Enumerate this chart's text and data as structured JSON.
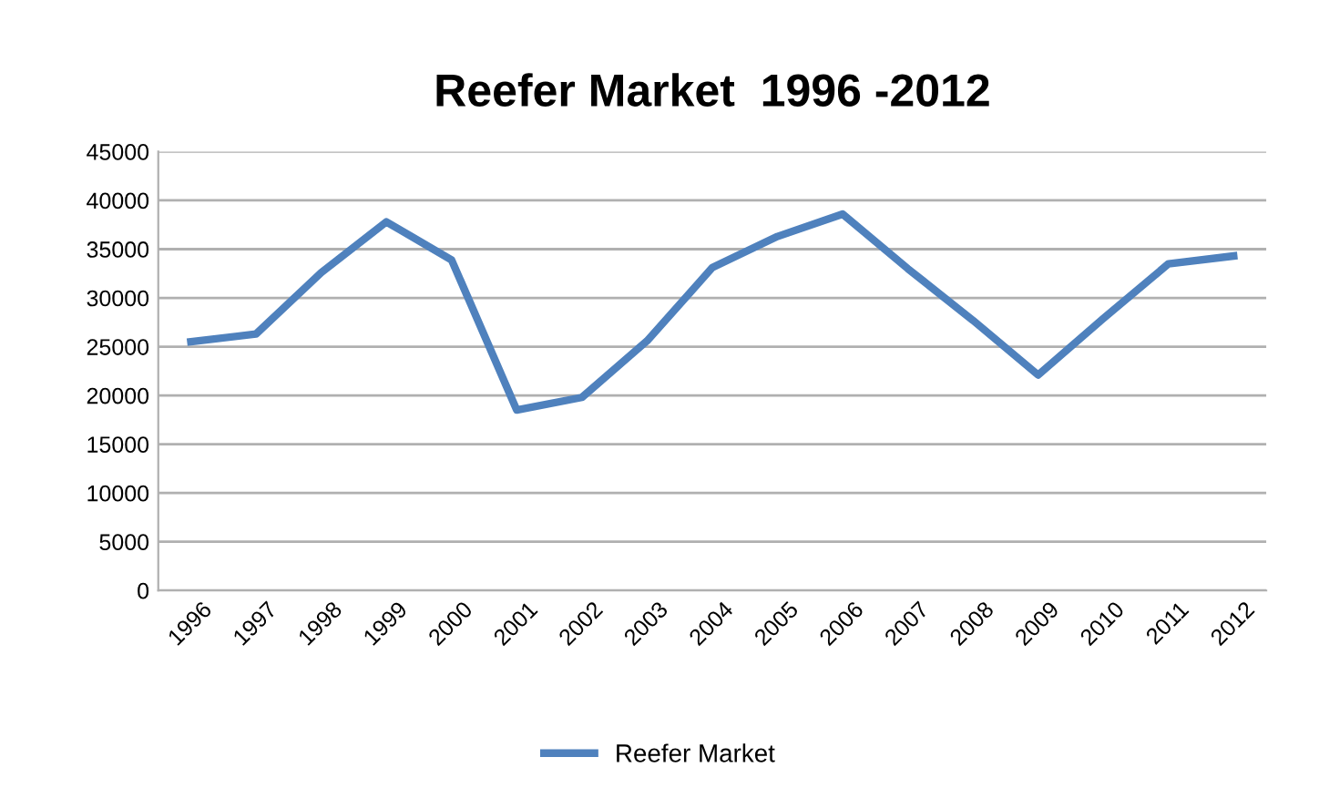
{
  "chart_data": {
    "type": "line",
    "title": "Reefer Market  1996 -2012",
    "categories": [
      "1996",
      "1997",
      "1998",
      "1999",
      "2000",
      "2001",
      "2002",
      "2003",
      "2004",
      "2005",
      "2006",
      "2007",
      "2008",
      "2009",
      "2010",
      "2011",
      "2012"
    ],
    "series": [
      {
        "name": "Reefer Market",
        "color": "#4f81bd",
        "values": [
          25500,
          26300,
          32600,
          37800,
          33900,
          18500,
          19800,
          25600,
          33100,
          36300,
          38600,
          33000,
          27700,
          22100,
          27900,
          33500,
          34300
        ]
      }
    ],
    "ylim": [
      0,
      45000
    ],
    "yticks": [
      0,
      5000,
      10000,
      15000,
      20000,
      25000,
      30000,
      35000,
      40000,
      45000
    ],
    "grid": "y",
    "legend": "bottom",
    "marker": "none",
    "line_style": "solid"
  }
}
